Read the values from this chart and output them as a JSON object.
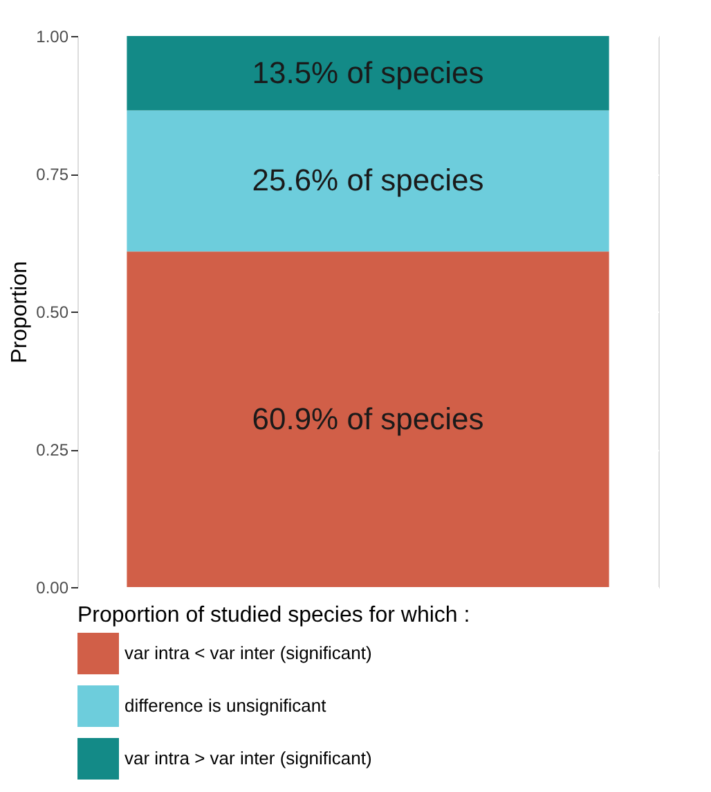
{
  "chart_data": {
    "type": "bar",
    "stacked": true,
    "categories": [
      null
    ],
    "ylabel": "Proportion",
    "legend_title": "Proportion of studied species for which :",
    "legend": "bottom",
    "grid": true,
    "tick_labels": "y",
    "ylim": [
      0,
      1
    ],
    "yticks": [
      {
        "value": 0,
        "label": "0.00"
      },
      {
        "value": 0.25,
        "label": "0.25"
      },
      {
        "value": 0.5,
        "label": "0.50"
      },
      {
        "value": 0.75,
        "label": "0.75"
      },
      {
        "value": 1,
        "label": "1.00"
      }
    ],
    "series": [
      {
        "name": "var intra < var inter (significant)",
        "color": "#d15f48",
        "values": [
          0.609
        ],
        "value_labels": [
          "60.9% of species"
        ]
      },
      {
        "name": "difference is unsignificant",
        "color": "#6dcddc",
        "values": [
          0.256
        ],
        "value_labels": [
          "25.6% of species"
        ]
      },
      {
        "name": "var intra > var inter (significant)",
        "color": "#138a87",
        "values": [
          0.135
        ],
        "value_labels": [
          "13.5% of species"
        ]
      }
    ]
  }
}
